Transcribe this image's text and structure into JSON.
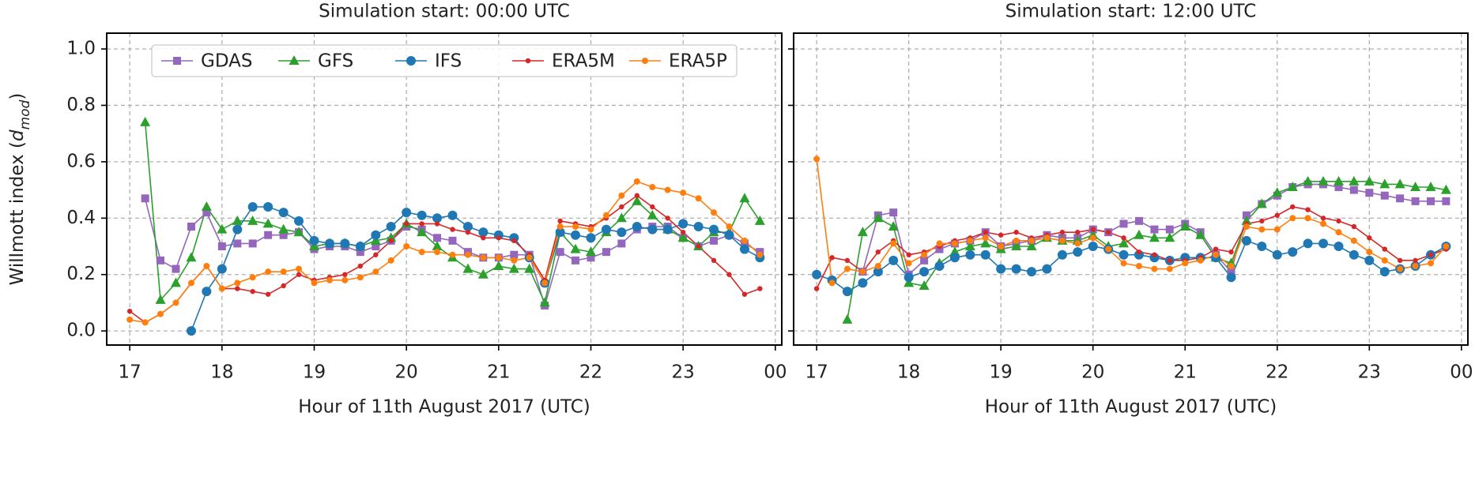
{
  "chart_data": [
    {
      "type": "line",
      "title": "Simulation start: 00:00 UTC",
      "xlabel": "Hour of 11th August 2017 (UTC)",
      "ylabel": [
        "Willmott index (",
        "d",
        "mod",
        ")"
      ],
      "legend": "upper center",
      "grid": true,
      "xlim": [
        16.75,
        24.07
      ],
      "ylim": [
        -0.05,
        1.056
      ],
      "xticks": [
        17,
        18,
        19,
        20,
        21,
        22,
        23,
        {
          "value": 24,
          "label": "00"
        }
      ],
      "yticks": [
        {
          "value": 0,
          "label": "0.0"
        },
        0.2,
        0.4,
        0.6,
        0.8,
        {
          "value": 1,
          "label": "1.0"
        }
      ],
      "x": [
        17,
        17.167,
        17.333,
        17.5,
        17.667,
        17.833,
        18,
        18.167,
        18.333,
        18.5,
        18.667,
        18.833,
        19,
        19.167,
        19.333,
        19.5,
        19.667,
        19.833,
        20,
        20.167,
        20.333,
        20.5,
        20.667,
        20.833,
        21,
        21.167,
        21.333,
        21.5,
        21.667,
        21.833,
        22,
        22.167,
        22.333,
        22.5,
        22.667,
        22.833,
        23,
        23.167,
        23.333,
        23.5,
        23.667,
        23.833
      ],
      "series": [
        {
          "name": "GDAS",
          "color": "#9467bd",
          "marker": "square",
          "values": [
            null,
            0.47,
            0.25,
            0.22,
            0.37,
            0.42,
            0.3,
            0.31,
            0.31,
            0.34,
            0.34,
            0.35,
            0.29,
            0.3,
            0.3,
            0.28,
            0.3,
            0.32,
            0.37,
            0.36,
            0.33,
            0.32,
            0.28,
            0.26,
            0.26,
            0.27,
            0.27,
            0.09,
            0.28,
            0.25,
            0.26,
            0.28,
            0.31,
            0.36,
            0.37,
            0.37,
            0.33,
            0.3,
            0.32,
            0.34,
            0.31,
            0.28
          ]
        },
        {
          "name": "GFS",
          "color": "#2ca02c",
          "marker": "triangle",
          "values": [
            null,
            0.74,
            0.11,
            0.17,
            0.26,
            0.44,
            0.36,
            0.39,
            0.39,
            0.38,
            0.36,
            0.35,
            0.3,
            0.31,
            0.31,
            0.3,
            0.32,
            0.33,
            0.38,
            0.35,
            0.3,
            0.26,
            0.22,
            0.2,
            0.23,
            0.22,
            0.22,
            0.1,
            0.35,
            0.29,
            0.28,
            0.35,
            0.4,
            0.46,
            0.41,
            0.36,
            0.33,
            0.3,
            0.35,
            0.35,
            0.47,
            0.39
          ]
        },
        {
          "name": "IFS",
          "color": "#1f77b4",
          "marker": "circle",
          "values": [
            null,
            null,
            null,
            null,
            0.0,
            0.14,
            0.22,
            0.36,
            0.44,
            0.44,
            0.42,
            0.39,
            0.32,
            0.31,
            0.31,
            0.3,
            0.34,
            0.37,
            0.42,
            0.41,
            0.4,
            0.41,
            0.37,
            0.35,
            0.34,
            0.33,
            0.26,
            0.17,
            0.35,
            0.34,
            0.33,
            0.36,
            0.35,
            0.37,
            0.36,
            0.36,
            0.38,
            0.37,
            0.36,
            0.34,
            0.29,
            0.26
          ]
        },
        {
          "name": "ERA5M",
          "color": "#d62728",
          "marker": "dot",
          "values": [
            0.07,
            0.03,
            0.06,
            0.1,
            0.17,
            0.23,
            0.15,
            0.15,
            0.14,
            0.13,
            0.16,
            0.2,
            0.18,
            0.19,
            0.2,
            0.23,
            0.27,
            0.32,
            0.38,
            0.38,
            0.38,
            0.36,
            0.35,
            0.33,
            0.33,
            0.32,
            0.27,
            0.18,
            0.39,
            0.38,
            0.37,
            0.4,
            0.44,
            0.48,
            0.44,
            0.4,
            0.35,
            0.3,
            0.25,
            0.2,
            0.13,
            0.15
          ]
        },
        {
          "name": "ERA5P",
          "color": "#ff7f0e",
          "marker": "smallcircle",
          "values": [
            0.04,
            0.03,
            0.06,
            0.1,
            0.17,
            0.23,
            0.15,
            0.17,
            0.19,
            0.21,
            0.21,
            0.22,
            0.17,
            0.18,
            0.18,
            0.19,
            0.21,
            0.25,
            0.3,
            0.28,
            0.28,
            0.27,
            0.27,
            0.26,
            0.26,
            0.25,
            0.26,
            0.17,
            0.37,
            0.37,
            0.36,
            0.41,
            0.48,
            0.53,
            0.51,
            0.5,
            0.49,
            0.47,
            0.42,
            0.37,
            0.32,
            0.27
          ]
        }
      ]
    },
    {
      "type": "line",
      "title": "Simulation start: 12:00 UTC",
      "xlabel": "Hour of 11th August 2017 (UTC)",
      "grid": true,
      "xlim": [
        16.75,
        24.07
      ],
      "ylim": [
        -0.05,
        1.056
      ],
      "xticks": [
        17,
        18,
        19,
        20,
        21,
        22,
        23,
        {
          "value": 24,
          "label": "00"
        }
      ],
      "yticks": [
        0,
        0.2,
        0.4,
        0.6,
        0.8,
        1
      ],
      "x": [
        17,
        17.167,
        17.333,
        17.5,
        17.667,
        17.833,
        18,
        18.167,
        18.333,
        18.5,
        18.667,
        18.833,
        19,
        19.167,
        19.333,
        19.5,
        19.667,
        19.833,
        20,
        20.167,
        20.333,
        20.5,
        20.667,
        20.833,
        21,
        21.167,
        21.333,
        21.5,
        21.667,
        21.833,
        22,
        22.167,
        22.333,
        22.5,
        22.667,
        22.833,
        23,
        23.167,
        23.333,
        23.5,
        23.667,
        23.833
      ],
      "series": [
        {
          "name": "GDAS",
          "color": "#9467bd",
          "marker": "square",
          "values": [
            null,
            null,
            null,
            0.21,
            0.41,
            0.42,
            0.2,
            0.25,
            0.29,
            0.31,
            0.32,
            0.35,
            0.3,
            0.31,
            0.32,
            0.34,
            0.33,
            0.33,
            0.36,
            0.35,
            0.38,
            0.39,
            0.36,
            0.36,
            0.38,
            0.35,
            0.27,
            0.21,
            0.41,
            0.45,
            0.48,
            0.51,
            0.52,
            0.52,
            0.51,
            0.5,
            0.49,
            0.48,
            0.47,
            0.46,
            0.46,
            0.46
          ]
        },
        {
          "name": "GFS",
          "color": "#2ca02c",
          "marker": "triangle",
          "values": [
            null,
            null,
            0.04,
            0.35,
            0.4,
            0.37,
            0.17,
            0.16,
            0.24,
            0.28,
            0.3,
            0.31,
            0.29,
            0.3,
            0.3,
            0.33,
            0.32,
            0.32,
            0.34,
            0.3,
            0.31,
            0.34,
            0.33,
            0.33,
            0.37,
            0.34,
            0.26,
            0.24,
            0.39,
            0.45,
            0.49,
            0.51,
            0.53,
            0.53,
            0.53,
            0.53,
            0.53,
            0.52,
            0.52,
            0.51,
            0.51,
            0.5
          ]
        },
        {
          "name": "IFS",
          "color": "#1f77b4",
          "marker": "circle",
          "values": [
            0.2,
            0.18,
            0.14,
            0.17,
            0.21,
            0.25,
            0.19,
            0.21,
            0.23,
            0.26,
            0.27,
            0.27,
            0.22,
            0.22,
            0.21,
            0.22,
            0.27,
            0.28,
            0.3,
            0.29,
            0.27,
            0.27,
            0.26,
            0.25,
            0.26,
            0.26,
            0.26,
            0.19,
            0.32,
            0.3,
            0.27,
            0.28,
            0.31,
            0.31,
            0.3,
            0.27,
            0.25,
            0.21,
            0.22,
            0.23,
            0.27,
            0.3
          ]
        },
        {
          "name": "ERA5M",
          "color": "#d62728",
          "marker": "dot",
          "values": [
            0.15,
            0.26,
            0.25,
            0.21,
            0.28,
            0.32,
            0.27,
            0.28,
            0.3,
            0.32,
            0.33,
            0.35,
            0.34,
            0.35,
            0.33,
            0.34,
            0.35,
            0.35,
            0.36,
            0.35,
            0.33,
            0.28,
            0.27,
            0.25,
            0.25,
            0.26,
            0.29,
            0.28,
            0.38,
            0.39,
            0.41,
            0.44,
            0.43,
            0.4,
            0.39,
            0.37,
            0.33,
            0.29,
            0.25,
            0.25,
            0.27,
            0.29
          ]
        },
        {
          "name": "ERA5P",
          "color": "#ff7f0e",
          "marker": "smallcircle",
          "values": [
            0.61,
            0.17,
            0.22,
            0.21,
            0.23,
            0.31,
            0.24,
            0.27,
            0.31,
            0.31,
            0.32,
            0.33,
            0.3,
            0.32,
            0.32,
            0.33,
            0.32,
            0.31,
            0.33,
            0.29,
            0.24,
            0.23,
            0.22,
            0.22,
            0.24,
            0.25,
            0.27,
            0.23,
            0.37,
            0.36,
            0.36,
            0.4,
            0.4,
            0.38,
            0.35,
            0.32,
            0.28,
            0.25,
            0.22,
            0.23,
            0.24,
            0.3
          ]
        }
      ]
    }
  ]
}
